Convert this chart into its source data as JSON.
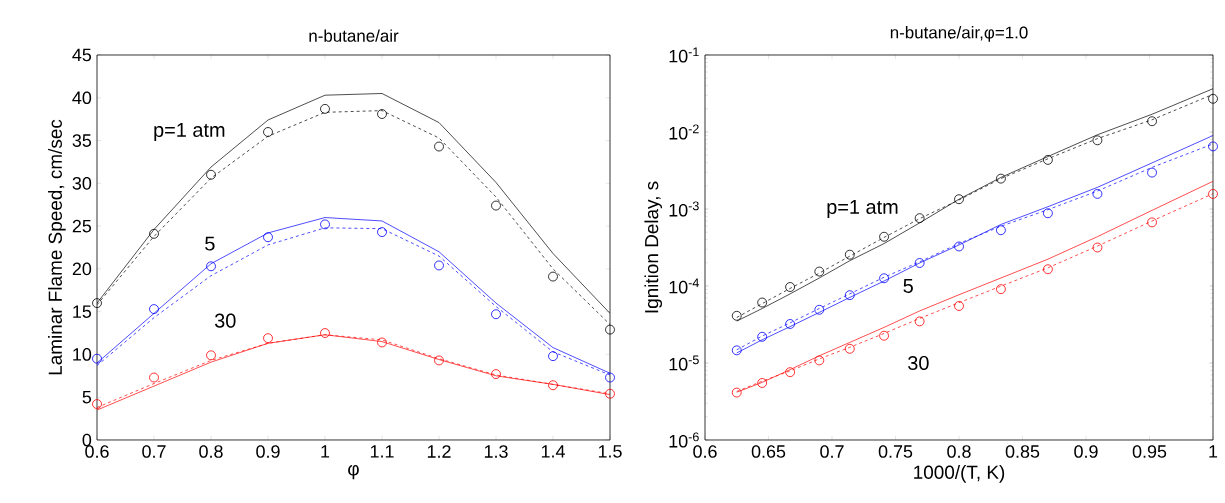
{
  "chart_data": [
    {
      "type": "line",
      "title": "n-butane/air",
      "xlabel": "φ",
      "ylabel": "Laminar Flame Speed, cm/sec",
      "x": [
        0.6,
        0.7,
        0.8,
        0.9,
        1.0,
        1.1,
        1.2,
        1.3,
        1.4,
        1.5
      ],
      "xlim": [
        0.6,
        1.5
      ],
      "xticks": [
        0.6,
        0.7,
        0.8,
        0.9,
        1,
        1.1,
        1.2,
        1.3,
        1.4,
        1.5
      ],
      "ylim": [
        0,
        45
      ],
      "yticks": [
        0,
        5,
        10,
        15,
        20,
        25,
        30,
        35,
        40,
        45
      ],
      "series": [
        {
          "type": "line",
          "line_style": "solid",
          "marker": "none",
          "color": "#000000",
          "values": [
            16.0,
            24.6,
            31.9,
            37.4,
            40.3,
            40.5,
            37.1,
            30.1,
            21.8,
            14.8
          ]
        },
        {
          "type": "line",
          "line_style": "dashed",
          "marker": "none",
          "color": "#000000",
          "values": [
            15.8,
            23.8,
            30.6,
            35.5,
            38.3,
            38.5,
            35.3,
            28.4,
            20.0,
            13.5
          ]
        },
        {
          "type": "scatter",
          "marker": "circle",
          "color": "#000000",
          "values": [
            16.0,
            24.1,
            31.0,
            36.0,
            38.7,
            38.1,
            34.3,
            27.4,
            19.1,
            12.9
          ]
        },
        {
          "type": "line",
          "line_style": "solid",
          "marker": "none",
          "color": "#0000ff",
          "values": [
            9.0,
            14.8,
            20.6,
            24.2,
            26.0,
            25.6,
            22.0,
            16.0,
            10.8,
            7.8
          ]
        },
        {
          "type": "line",
          "line_style": "dashed",
          "marker": "none",
          "color": "#0000ff",
          "values": [
            8.7,
            14.3,
            19.2,
            22.8,
            24.8,
            24.7,
            21.5,
            15.6,
            10.3,
            7.6
          ]
        },
        {
          "type": "scatter",
          "marker": "circle",
          "color": "#0000ff",
          "values": [
            9.5,
            15.3,
            20.3,
            23.7,
            25.2,
            24.3,
            20.4,
            14.7,
            9.8,
            7.3
          ]
        },
        {
          "type": "line",
          "line_style": "solid",
          "marker": "none",
          "color": "#ff0000",
          "values": [
            3.5,
            6.3,
            9.1,
            11.3,
            12.3,
            11.5,
            9.4,
            7.5,
            6.5,
            5.3
          ]
        },
        {
          "type": "line",
          "line_style": "dashed",
          "marker": "none",
          "color": "#ff0000",
          "values": [
            3.8,
            6.6,
            9.3,
            11.3,
            12.3,
            11.7,
            9.5,
            7.6,
            6.5,
            5.4
          ]
        },
        {
          "type": "scatter",
          "marker": "circle",
          "color": "#ff0000",
          "values": [
            4.2,
            7.3,
            9.9,
            11.9,
            12.5,
            11.4,
            9.3,
            7.7,
            6.4,
            5.4
          ]
        }
      ],
      "annotations": [
        "p=1 atm",
        "5",
        "30"
      ]
    },
    {
      "type": "line",
      "title": "n-butane/air,φ=1.0",
      "xlabel": "1000/(T, K)",
      "ylabel": "Ignition Delay, s",
      "x": [
        0.625,
        0.645,
        0.667,
        0.69,
        0.714,
        0.741,
        0.769,
        0.8,
        0.833,
        0.87,
        0.909,
        0.952,
        1.0
      ],
      "xlim": [
        0.6,
        1.0
      ],
      "xticks": [
        0.6,
        0.65,
        0.7,
        0.75,
        0.8,
        0.85,
        0.9,
        0.95,
        1
      ],
      "log": "y",
      "ylim": [
        1e-06,
        0.1
      ],
      "yticks": [
        {
          "value": 1e-06,
          "label": "10$^{-6}$"
        },
        {
          "value": 1e-05,
          "label": "10$^{-5}$"
        },
        {
          "value": 0.0001,
          "label": "10$^{-4}$"
        },
        {
          "value": 0.001,
          "label": "10$^{-3}$"
        },
        {
          "value": 0.01,
          "label": "10$^{-2}$"
        },
        {
          "value": 0.1,
          "label": "10$^{-1}$"
        }
      ],
      "series": [
        {
          "type": "line",
          "line_style": "solid",
          "marker": "none",
          "color": "#000000",
          "values": [
            3.5e-05,
            5.1e-05,
            7.9e-05,
            0.000127,
            0.000213,
            0.000356,
            0.00066,
            0.00134,
            0.00257,
            0.0048,
            0.0092,
            0.017,
            0.0365
          ]
        },
        {
          "type": "line",
          "line_style": "dashed",
          "marker": "none",
          "color": "#000000",
          "values": [
            3.9e-05,
            5.9e-05,
            9.3e-05,
            0.000147,
            0.000244,
            0.000427,
            0.00075,
            0.00131,
            0.00248,
            0.00449,
            0.0082,
            0.0144,
            0.0308
          ]
        },
        {
          "type": "scatter",
          "marker": "circle",
          "color": "#000000",
          "values": [
            4.1e-05,
            6.1e-05,
            9.7e-05,
            0.000154,
            0.000255,
            0.000436,
            0.00076,
            0.00134,
            0.00248,
            0.00434,
            0.0078,
            0.0138,
            0.027
          ]
        },
        {
          "type": "line",
          "line_style": "solid",
          "marker": "none",
          "color": "#0000ff",
          "values": [
            1.35e-05,
            2e-05,
            2.97e-05,
            4.54e-05,
            7.1e-05,
            0.000116,
            0.000199,
            0.000341,
            0.00063,
            0.00107,
            0.00191,
            0.00397,
            0.009
          ]
        },
        {
          "type": "line",
          "line_style": "dashed",
          "marker": "none",
          "color": "#0000ff",
          "values": [
            1.48e-05,
            2.24e-05,
            3.32e-05,
            5.1e-05,
            7.9e-05,
            0.00013,
            0.000206,
            0.000356,
            0.000597,
            0.00098,
            0.00171,
            0.00347,
            0.007
          ]
        },
        {
          "type": "scatter",
          "marker": "circle",
          "color": "#0000ff",
          "values": [
            1.46e-05,
            2.19e-05,
            3.21e-05,
            4.91e-05,
            7.6e-05,
            0.000126,
            0.000199,
            0.000326,
            0.00053,
            0.00088,
            0.00157,
            0.00297,
            0.0065
          ]
        },
        {
          "type": "line",
          "line_style": "solid",
          "marker": "none",
          "color": "#ff0000",
          "values": [
            4.17e-06,
            5.6e-06,
            8.2e-06,
            1.24e-05,
            1.85e-05,
            2.9e-05,
            4.74e-05,
            7.7e-05,
            0.000127,
            0.000223,
            0.000437,
            0.00096,
            0.00229
          ]
        },
        {
          "type": "line",
          "line_style": "dashed",
          "marker": "none",
          "color": "#ff0000",
          "values": [
            4.27e-06,
            5.8e-06,
            7.9e-06,
            1.13e-05,
            1.6e-05,
            2.42e-05,
            3.79e-05,
            6.07e-05,
            9.95e-05,
            0.000172,
            0.00033,
            0.000698,
            0.00158
          ]
        },
        {
          "type": "scatter",
          "marker": "circle",
          "color": "#ff0000",
          "values": [
            4.13e-06,
            5.5e-06,
            7.6e-06,
            1.08e-05,
            1.53e-05,
            2.26e-05,
            3.47e-05,
            5.5e-05,
            9.1e-05,
            0.000165,
            0.000316,
            0.00067,
            0.00157
          ]
        }
      ],
      "annotations": [
        "p=1 atm",
        "5",
        "30"
      ]
    }
  ]
}
